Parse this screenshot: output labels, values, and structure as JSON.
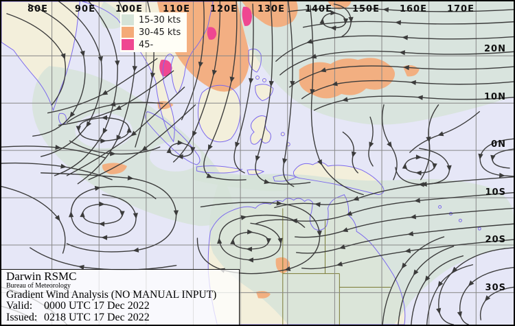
{
  "map": {
    "longitude_labels": [
      "80E",
      "90E",
      "100E",
      "110E",
      "120E",
      "130E",
      "140E",
      "150E",
      "160E",
      "170E"
    ],
    "latitude_labels": [
      "20N",
      "10N",
      "0N",
      "10S",
      "20S",
      "30S"
    ]
  },
  "legend": {
    "items": [
      {
        "label": "15-30 kts",
        "color": "#d5e3d8"
      },
      {
        "label": "30-45 kts",
        "color": "#f4aa78"
      },
      {
        "label": "45-",
        "color": "#ef4791"
      }
    ]
  },
  "info_box": {
    "agency": "Darwin RSMC",
    "bureau": "Bureau of Meteorology",
    "product_title": "Gradient Wind Analysis (NO MANUAL INPUT)",
    "valid_label": "Valid:",
    "valid_value": "0000 UTC 17 Dec 2022",
    "issued_label": "Issued:",
    "issued_value": "0218 UTC 17 Dec 2022"
  },
  "colors": {
    "sea_background": "#e6e7f7",
    "land": "#f3efdb",
    "coastline": "#7b68ee",
    "streamline": "#3b3b3b",
    "grid_line": "#878787",
    "shade_15_30_kts": "#d5e3d8",
    "shade_30_45_kts": "#f4aa78",
    "shade_45_kts": "#ef4791"
  }
}
